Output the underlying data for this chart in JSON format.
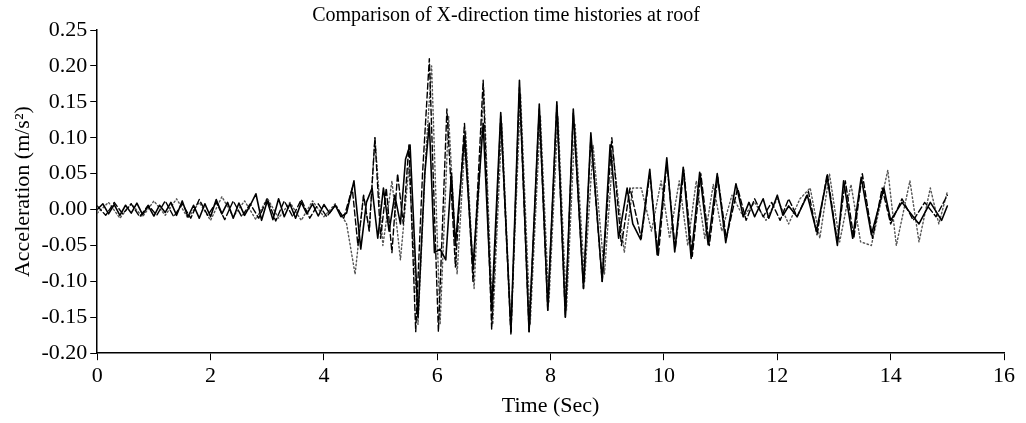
{
  "chart_data": {
    "type": "line",
    "title": "Comparison of X-direction time histories at roof",
    "xlabel": "Time (Sec)",
    "ylabel": "Acceleration (m/s²)",
    "xlim": [
      0,
      16
    ],
    "xticks": [
      0,
      2,
      4,
      6,
      8,
      10,
      12,
      14,
      16
    ],
    "ylim": [
      -0.2,
      0.25
    ],
    "yticks": [
      {
        "value": -0.2,
        "label": "-0.20"
      },
      {
        "value": -0.15,
        "label": "-0.15"
      },
      {
        "value": -0.1,
        "label": "-0.10"
      },
      {
        "value": -0.05,
        "label": "-0.05"
      },
      {
        "value": 0,
        "label": "0.00"
      },
      {
        "value": 0.05,
        "label": "0.05"
      },
      {
        "value": 0.1,
        "label": "0.10"
      },
      {
        "value": 0.15,
        "label": "0.15"
      },
      {
        "value": 0.2,
        "label": "0.20"
      },
      {
        "value": 0.25,
        "label": "0.25"
      }
    ],
    "grid": false,
    "legend": false,
    "marker": "none",
    "series": [
      {
        "color": "#000000",
        "line_style": "solid",
        "x": [
          0,
          0.1,
          0.2,
          0.3,
          0.4,
          0.5,
          0.6,
          0.7,
          0.8,
          0.9,
          1.0,
          1.1,
          1.2,
          1.3,
          1.4,
          1.5,
          1.6,
          1.7,
          1.8,
          1.9,
          2.0,
          2.1,
          2.2,
          2.3,
          2.4,
          2.5,
          2.6,
          2.7,
          2.8,
          2.9,
          3.0,
          3.1,
          3.2,
          3.3,
          3.4,
          3.5,
          3.6,
          3.7,
          3.8,
          3.9,
          4.0,
          4.1,
          4.2,
          4.3,
          4.4,
          4.53,
          4.65,
          4.75,
          4.85,
          4.95,
          5.05,
          5.15,
          5.25,
          5.35,
          5.44,
          5.52,
          5.66,
          5.78,
          5.86,
          5.95,
          6.05,
          6.15,
          6.25,
          6.32,
          6.48,
          6.63,
          6.81,
          6.96,
          7.12,
          7.3,
          7.45,
          7.62,
          7.8,
          7.95,
          8.11,
          8.26,
          8.4,
          8.58,
          8.71,
          8.91,
          9.05,
          9.2,
          9.35,
          9.45,
          9.59,
          9.75,
          9.88,
          10.05,
          10.19,
          10.34,
          10.48,
          10.63,
          10.78,
          10.94,
          11.09,
          11.27,
          11.4,
          11.5,
          11.6,
          11.75,
          11.85,
          12.0,
          12.1,
          12.2,
          12.35,
          12.53,
          12.69,
          12.88,
          13.06,
          13.17,
          13.33,
          13.48,
          13.66,
          13.88,
          14.0,
          14.2,
          14.35,
          14.5,
          14.7,
          14.9,
          15.0
        ],
        "values": [
          0,
          0.008,
          -0.006,
          0.007,
          -0.008,
          0.006,
          -0.005,
          0.009,
          -0.007,
          0.005,
          -0.009,
          0.006,
          -0.004,
          0.01,
          -0.008,
          0.012,
          -0.01,
          0.006,
          -0.012,
          0.008,
          -0.01,
          0.014,
          -0.006,
          0.01,
          -0.012,
          0.009,
          -0.008,
          0.006,
          0.022,
          -0.015,
          0.012,
          -0.014,
          0.015,
          -0.01,
          0.008,
          -0.012,
          0.01,
          -0.006,
          0.008,
          -0.009,
          0.007,
          -0.005,
          0.006,
          -0.01,
          -0.005,
          0.04,
          -0.055,
          0.01,
          0.03,
          -0.04,
          0.03,
          -0.03,
          0.02,
          -0.02,
          0.07,
          0.09,
          -0.15,
          0.05,
          0.12,
          -0.06,
          -0.055,
          -0.07,
          0.05,
          -0.05,
          0.1,
          -0.08,
          0.12,
          -0.14,
          0.135,
          -0.17,
          0.18,
          -0.17,
          0.147,
          -0.14,
          0.15,
          -0.15,
          0.14,
          -0.11,
          0.107,
          -0.1,
          0.09,
          -0.04,
          0.03,
          -0.02,
          -0.042,
          0.056,
          -0.063,
          0.072,
          -0.059,
          0.059,
          -0.068,
          0.052,
          -0.049,
          0.05,
          -0.046,
          0.036,
          -0.01,
          0.01,
          -0.01,
          0.015,
          -0.012,
          0.02,
          -0.008,
          0.005,
          -0.01,
          0.02,
          -0.03,
          0.045,
          -0.05,
          0.04,
          -0.04,
          0.045,
          -0.035,
          0.03,
          -0.015,
          0.01,
          -0.005,
          -0.02,
          0.01,
          -0.015,
          0.005
        ]
      },
      {
        "color": "#000000",
        "line_style": "dashed",
        "x": [
          0,
          0.15,
          0.3,
          0.45,
          0.6,
          0.75,
          0.9,
          1.05,
          1.2,
          1.35,
          1.5,
          1.65,
          1.8,
          1.95,
          2.1,
          2.25,
          2.4,
          2.55,
          2.7,
          2.85,
          3.0,
          3.15,
          3.3,
          3.45,
          3.6,
          3.75,
          3.9,
          4.05,
          4.2,
          4.35,
          4.5,
          4.6,
          4.7,
          4.8,
          4.9,
          5.0,
          5.1,
          5.2,
          5.3,
          5.4,
          5.5,
          5.62,
          5.74,
          5.86,
          6.02,
          6.17,
          6.32,
          6.48,
          6.63,
          6.81,
          6.96,
          7.12,
          7.3,
          7.45,
          7.62,
          7.8,
          7.95,
          8.11,
          8.26,
          8.4,
          8.58,
          8.71,
          8.91,
          9.08,
          9.25,
          9.4,
          9.6,
          9.75,
          9.9,
          10.05,
          10.2,
          10.35,
          10.5,
          10.65,
          10.8,
          10.95,
          11.1,
          11.3,
          11.45,
          11.6,
          11.75,
          11.9,
          12.05,
          12.2,
          12.35,
          12.55,
          12.7,
          12.88,
          13.06,
          13.2,
          13.35,
          13.5,
          13.68,
          13.85,
          14.0,
          14.2,
          14.4,
          14.6,
          14.8,
          15.0
        ],
        "values": [
          0.005,
          -0.008,
          0.01,
          -0.006,
          0.008,
          -0.01,
          0.006,
          -0.008,
          0.012,
          -0.01,
          0.008,
          -0.012,
          0.014,
          -0.008,
          0.01,
          -0.014,
          0.012,
          -0.01,
          0.008,
          -0.012,
          0.015,
          -0.016,
          0.012,
          -0.01,
          0.014,
          -0.012,
          0.008,
          -0.01,
          0.006,
          -0.012,
          0.03,
          -0.05,
          0.02,
          -0.03,
          0.1,
          -0.04,
          0.03,
          -0.06,
          0.05,
          -0.02,
          0.09,
          -0.17,
          0.05,
          0.21,
          -0.17,
          0.14,
          -0.08,
          0.12,
          -0.1,
          0.18,
          -0.167,
          0.13,
          -0.175,
          0.17,
          -0.17,
          0.14,
          -0.14,
          0.145,
          -0.15,
          0.135,
          -0.11,
          0.1,
          -0.1,
          0.1,
          -0.05,
          0.03,
          -0.04,
          0.05,
          -0.065,
          0.065,
          -0.055,
          0.055,
          -0.065,
          0.05,
          -0.05,
          0.045,
          -0.04,
          0.03,
          -0.015,
          0.015,
          -0.01,
          0.01,
          -0.015,
          0.015,
          -0.01,
          0.025,
          -0.035,
          0.05,
          -0.045,
          0.04,
          -0.04,
          0.05,
          -0.04,
          0.03,
          -0.02,
          0.015,
          -0.015,
          0.01,
          -0.01,
          0.02
        ]
      },
      {
        "color": "#555555",
        "line_style": "dotted",
        "x": [
          0,
          0.2,
          0.4,
          0.6,
          0.8,
          1.0,
          1.2,
          1.4,
          1.6,
          1.8,
          2.0,
          2.2,
          2.4,
          2.6,
          2.8,
          3.0,
          3.2,
          3.4,
          3.6,
          3.8,
          4.0,
          4.2,
          4.4,
          4.55,
          4.7,
          4.8,
          4.9,
          5.04,
          5.2,
          5.35,
          5.5,
          5.66,
          5.8,
          5.9,
          6.05,
          6.2,
          6.35,
          6.5,
          6.65,
          6.82,
          6.98,
          7.14,
          7.3,
          7.47,
          7.64,
          7.82,
          7.97,
          8.13,
          8.28,
          8.43,
          8.6,
          8.75,
          8.95,
          9.1,
          9.3,
          9.45,
          9.6,
          9.78,
          9.95,
          10.1,
          10.27,
          10.42,
          10.57,
          10.72,
          10.87,
          11.02,
          11.2,
          11.4,
          11.6,
          11.8,
          12.0,
          12.2,
          12.4,
          12.58,
          12.75,
          12.92,
          13.1,
          13.3,
          13.47,
          13.66,
          13.95,
          14.1,
          14.34,
          14.5,
          14.7,
          14.85,
          15.0
        ],
        "values": [
          -0.005,
          0.01,
          -0.012,
          0.008,
          -0.01,
          0.012,
          -0.008,
          0.015,
          -0.012,
          0.01,
          -0.015,
          0.018,
          -0.01,
          0.012,
          -0.014,
          0.016,
          -0.012,
          0.01,
          -0.015,
          0.012,
          -0.01,
          0.008,
          -0.02,
          -0.09,
          0.02,
          -0.03,
          0.1,
          -0.05,
          0.04,
          -0.07,
          0.06,
          -0.16,
          0.08,
          0.2,
          -0.16,
          0.13,
          -0.09,
          0.11,
          -0.11,
          0.17,
          -0.16,
          0.12,
          -0.17,
          0.16,
          -0.16,
          0.13,
          -0.13,
          0.13,
          -0.14,
          0.12,
          -0.1,
          0.09,
          -0.09,
          0.08,
          -0.06,
          0.03,
          0.03,
          -0.03,
          0.04,
          -0.04,
          0.04,
          -0.05,
          0.04,
          -0.04,
          0.035,
          -0.03,
          0.02,
          -0.01,
          0.01,
          -0.015,
          0.015,
          -0.02,
          0.015,
          0.03,
          -0.04,
          0.05,
          -0.045,
          0.035,
          -0.045,
          -0.05,
          0.055,
          -0.05,
          0.04,
          -0.045,
          0.03,
          -0.02,
          0.025
        ]
      }
    ]
  }
}
